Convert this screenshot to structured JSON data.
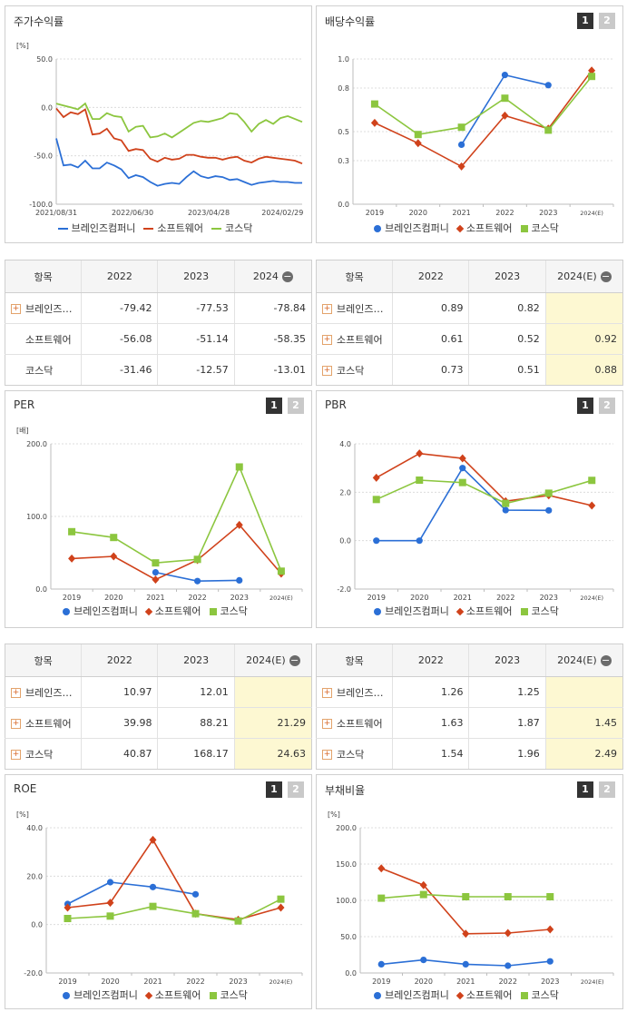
{
  "buttons": {
    "one": "1",
    "two": "2"
  },
  "colors": {
    "brains": "#2b6fd6",
    "software": "#d0421b",
    "kosdaq": "#8cc63f"
  },
  "legend": [
    "브레인즈컴퍼니",
    "소프트웨어",
    "코스닥"
  ],
  "stock": {
    "title": "주가수익률",
    "unit": "[%]",
    "chart_data": {
      "type": "line",
      "title": "주가수익률",
      "ylim": [
        -100,
        50
      ],
      "yticks": [
        "50.0",
        "0.0",
        "-50.0",
        "-100.0"
      ],
      "xticks": [
        "2021/08/31",
        "2022/06/30",
        "2023/04/28",
        "2024/02/29"
      ],
      "x_period": "2021/08/31 ~ 2024/04",
      "series": [
        {
          "name": "브레인즈컴퍼니",
          "values": [
            -32,
            -60,
            -59,
            -62,
            -55,
            -63,
            -63,
            -57,
            -60,
            -64,
            -73,
            -70,
            -72,
            -77,
            -81,
            -79,
            -78,
            -79,
            -72,
            -66,
            -71,
            -73,
            -71,
            -72,
            -75,
            -74,
            -77,
            -80,
            -78,
            -77,
            -76,
            -77,
            -77,
            -78,
            -78
          ]
        },
        {
          "name": "소프트웨어",
          "values": [
            -1,
            -10,
            -5,
            -7,
            -2,
            -28,
            -27,
            -22,
            -32,
            -34,
            -45,
            -43,
            -44,
            -53,
            -56,
            -52,
            -54,
            -53,
            -49,
            -49,
            -51,
            -52,
            -52,
            -54,
            -52,
            -51,
            -55,
            -57,
            -53,
            -51,
            -52,
            -53,
            -54,
            -55,
            -58
          ]
        },
        {
          "name": "코스닥",
          "values": [
            4,
            2,
            0,
            -2,
            4,
            -12,
            -12,
            -6,
            -9,
            -10,
            -25,
            -20,
            -19,
            -31,
            -30,
            -27,
            -31,
            -26,
            -21,
            -16,
            -14,
            -15,
            -13,
            -11,
            -6,
            -7,
            -15,
            -25,
            -17,
            -13,
            -17,
            -11,
            -9,
            -12,
            -15
          ]
        }
      ]
    }
  },
  "dividend": {
    "title": "배당수익률",
    "chart_data": {
      "type": "line",
      "title": "배당수익률",
      "categories": [
        "2019",
        "2020",
        "2021",
        "2022",
        "2023",
        "2024(E)"
      ],
      "ylim": [
        0.0,
        1.0
      ],
      "yticks": [
        "1.0",
        "0.8",
        "0.5",
        "0.3",
        "0.0"
      ],
      "series": [
        {
          "name": "브레인즈컴퍼니",
          "values": [
            null,
            null,
            0.41,
            0.89,
            0.82,
            null
          ]
        },
        {
          "name": "소프트웨어",
          "values": [
            0.56,
            0.42,
            0.26,
            0.61,
            0.52,
            0.92
          ]
        },
        {
          "name": "코스닥",
          "values": [
            0.69,
            0.48,
            0.53,
            0.73,
            0.51,
            0.88
          ]
        }
      ]
    }
  },
  "per": {
    "title": "PER",
    "unit": "[배]",
    "chart_data": {
      "type": "line",
      "title": "PER",
      "categories": [
        "2019",
        "2020",
        "2021",
        "2022",
        "2023",
        "2024(E)"
      ],
      "ylim": [
        0.0,
        200.0
      ],
      "yticks": [
        "200.0",
        "100.0",
        "0.0"
      ],
      "series": [
        {
          "name": "브레인즈컴퍼니",
          "values": [
            null,
            null,
            23,
            10.97,
            12.01,
            null
          ]
        },
        {
          "name": "소프트웨어",
          "values": [
            42,
            45,
            13,
            39.98,
            88.21,
            21.29
          ]
        },
        {
          "name": "코스닥",
          "values": [
            79,
            71,
            36,
            40.87,
            168.17,
            24.63
          ]
        }
      ]
    }
  },
  "pbr": {
    "title": "PBR",
    "chart_data": {
      "type": "line",
      "title": "PBR",
      "categories": [
        "2019",
        "2020",
        "2021",
        "2022",
        "2023",
        "2024(E)"
      ],
      "ylim": [
        -2.0,
        4.0
      ],
      "yticks": [
        "4.0",
        "2.0",
        "0.0",
        "-2.0"
      ],
      "series": [
        {
          "name": "브레인즈컴퍼니",
          "values": [
            0.0,
            0.0,
            3.0,
            1.26,
            1.25,
            null
          ]
        },
        {
          "name": "소프트웨어",
          "values": [
            2.6,
            3.6,
            3.4,
            1.63,
            1.87,
            1.45
          ]
        },
        {
          "name": "코스닥",
          "values": [
            1.7,
            2.5,
            2.4,
            1.54,
            1.96,
            2.49
          ]
        }
      ]
    }
  },
  "roe": {
    "title": "ROE",
    "unit": "[%]",
    "chart_data": {
      "type": "line",
      "title": "ROE",
      "categories": [
        "2019",
        "2020",
        "2021",
        "2022",
        "2023",
        "2024(E)"
      ],
      "ylim": [
        -20.0,
        40.0
      ],
      "yticks": [
        "40.0",
        "20.0",
        "0.0",
        "-20.0"
      ],
      "series": [
        {
          "name": "브레인즈컴퍼니",
          "values": [
            8.5,
            17.5,
            15.5,
            12.5,
            null,
            null
          ]
        },
        {
          "name": "소프트웨어",
          "values": [
            7,
            9,
            35,
            4.5,
            2,
            7
          ]
        },
        {
          "name": "코스닥",
          "values": [
            2.5,
            3.5,
            7.5,
            4.5,
            1.5,
            10.5
          ]
        }
      ]
    }
  },
  "debt": {
    "title": "부채비율",
    "unit": "[%]",
    "chart_data": {
      "type": "line",
      "title": "부채비율",
      "categories": [
        "2019",
        "2020",
        "2021",
        "2022",
        "2023",
        "2024(E)"
      ],
      "ylim": [
        0.0,
        200.0
      ],
      "yticks": [
        "200.0",
        "150.0",
        "100.0",
        "50.0",
        "0.0"
      ],
      "series": [
        {
          "name": "브레인즈컴퍼니",
          "values": [
            12,
            18,
            12,
            10,
            16,
            null
          ]
        },
        {
          "name": "소프트웨어",
          "values": [
            144,
            121,
            54,
            55,
            60,
            null
          ]
        },
        {
          "name": "코스닥",
          "values": [
            103,
            108,
            105,
            105,
            105,
            null
          ]
        }
      ]
    }
  },
  "tables": {
    "stock": {
      "headers": [
        "항목",
        "2022",
        "2023",
        "2024"
      ],
      "rows": [
        {
          "name": "브레인즈…",
          "plus": true,
          "v": [
            "-79.42",
            "-77.53",
            "-78.84"
          ]
        },
        {
          "name": "소프트웨어",
          "plus": false,
          "v": [
            "-56.08",
            "-51.14",
            "-58.35"
          ]
        },
        {
          "name": "코스닥",
          "plus": false,
          "v": [
            "-31.46",
            "-12.57",
            "-13.01"
          ]
        }
      ]
    },
    "dividend": {
      "headers": [
        "항목",
        "2022",
        "2023",
        "2024(E)"
      ],
      "rows": [
        {
          "name": "브레인즈…",
          "plus": true,
          "v": [
            "0.89",
            "0.82",
            ""
          ]
        },
        {
          "name": "소프트웨어",
          "plus": true,
          "v": [
            "0.61",
            "0.52",
            "0.92"
          ]
        },
        {
          "name": "코스닥",
          "plus": true,
          "v": [
            "0.73",
            "0.51",
            "0.88"
          ]
        }
      ]
    },
    "per": {
      "headers": [
        "항목",
        "2022",
        "2023",
        "2024(E)"
      ],
      "rows": [
        {
          "name": "브레인즈…",
          "plus": true,
          "v": [
            "10.97",
            "12.01",
            ""
          ]
        },
        {
          "name": "소프트웨어",
          "plus": true,
          "v": [
            "39.98",
            "88.21",
            "21.29"
          ]
        },
        {
          "name": "코스닥",
          "plus": true,
          "v": [
            "40.87",
            "168.17",
            "24.63"
          ]
        }
      ]
    },
    "pbr": {
      "headers": [
        "항목",
        "2022",
        "2023",
        "2024(E)"
      ],
      "rows": [
        {
          "name": "브레인즈…",
          "plus": true,
          "v": [
            "1.26",
            "1.25",
            ""
          ]
        },
        {
          "name": "소프트웨어",
          "plus": true,
          "v": [
            "1.63",
            "1.87",
            "1.45"
          ]
        },
        {
          "name": "코스닥",
          "plus": true,
          "v": [
            "1.54",
            "1.96",
            "2.49"
          ]
        }
      ]
    }
  }
}
